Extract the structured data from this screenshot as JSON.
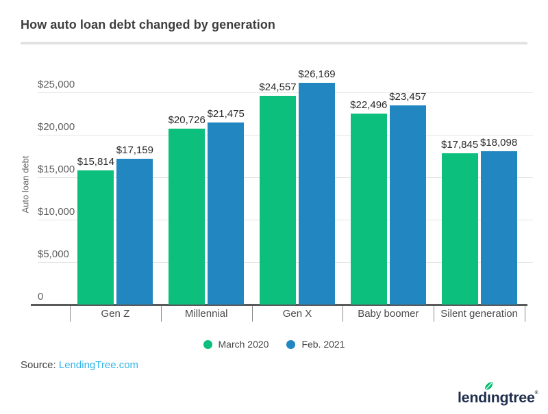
{
  "title": "How auto loan debt changed by generation",
  "chart_data": {
    "type": "bar",
    "categories": [
      "Gen Z",
      "Millennial",
      "Gen X",
      "Baby boomer",
      "Silent generation"
    ],
    "series": [
      {
        "name": "March 2020",
        "color": "#0dbf7c",
        "values": [
          15814,
          20726,
          24557,
          22496,
          17845
        ]
      },
      {
        "name": "Feb. 2021",
        "color": "#2286c0",
        "values": [
          17159,
          21475,
          26169,
          23457,
          18098
        ]
      }
    ],
    "bar_labels": [
      [
        "$15,814",
        "$20,726",
        "$24,557",
        "$22,496",
        "$17,845"
      ],
      [
        "$17,159",
        "$21,475",
        "$26,169",
        "$23,457",
        "$18,098"
      ]
    ],
    "title": "How auto loan debt changed by generation",
    "xlabel": "",
    "ylabel": "Auto loan debt",
    "ytick_values": [
      0,
      5000,
      10000,
      15000,
      20000,
      25000
    ],
    "ytick_labels": [
      "0",
      "$5,000",
      "$10,000",
      "$15,000",
      "$20,000",
      "$25,000"
    ],
    "ylim": [
      0,
      27500
    ],
    "grid": true,
    "legend_position": "bottom"
  },
  "source": {
    "prefix": "Source: ",
    "link": "LendingTree.com"
  },
  "logo": {
    "pre": "lend",
    "i": "ı",
    "post": "ngtree",
    "reg": "®"
  },
  "colors": {
    "march_green": "#0dbf7c",
    "feb_blue": "#2286c0",
    "link_blue": "#30b4e8",
    "logo_navy": "#1f2e4c",
    "leaf_green": "#00c06d",
    "grid_gray": "#e4e4e4",
    "axis_gray": "#58595b"
  }
}
